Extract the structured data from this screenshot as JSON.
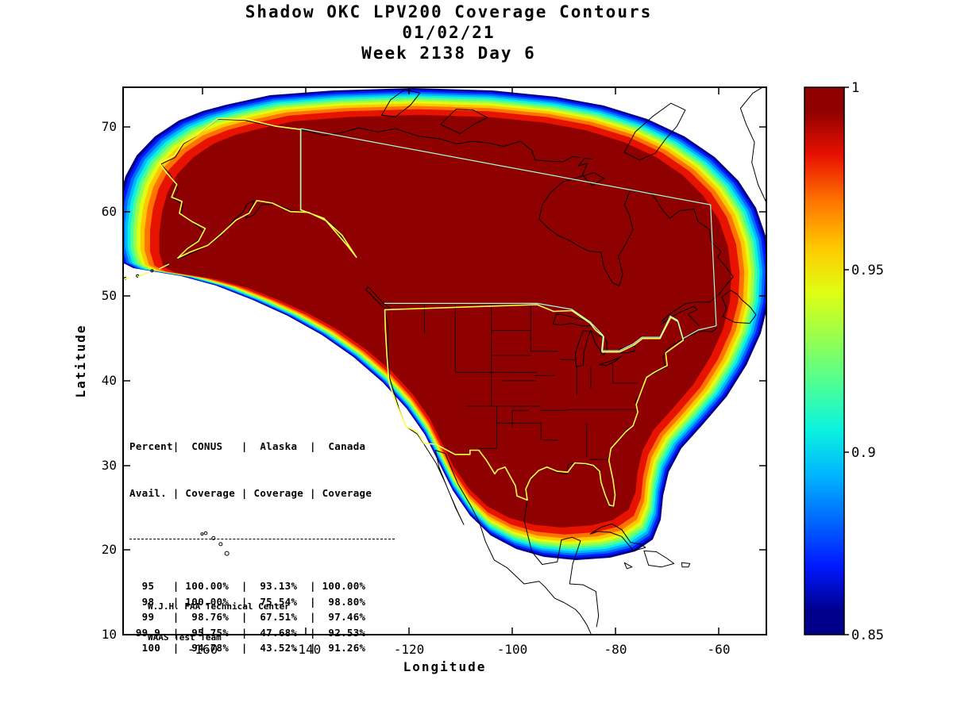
{
  "title": {
    "line1": "Shadow OKC LPV200 Coverage Contours",
    "line2": "01/02/21",
    "line3": "Week 2138 Day 6"
  },
  "axes": {
    "x_label": "Longitude",
    "y_label": "Latitude",
    "x_ticks": [
      "-160",
      "-140",
      "-120",
      "-100",
      "-80",
      "-60"
    ],
    "y_ticks": [
      "70",
      "60",
      "50",
      "40",
      "30",
      "20",
      "10"
    ]
  },
  "colorbar": {
    "tick_labels": [
      "1",
      "0.95",
      "0.9",
      "0.85"
    ]
  },
  "credit": {
    "line1": "W.J.H. FAA Technical Center",
    "line2": "WAAS Test Team"
  },
  "chart_data": {
    "type": "contour",
    "title": "Shadow OKC LPV200 Coverage Contours",
    "subtitle": "01/02/21  Week 2138 Day 6",
    "xlabel": "Longitude",
    "ylabel": "Latitude",
    "xlim": [
      -175.4,
      -50.8
    ],
    "ylim": [
      10,
      74.7
    ],
    "x_ticks": [
      -160,
      -140,
      -120,
      -100,
      -80,
      -60
    ],
    "y_ticks": [
      70,
      60,
      50,
      40,
      30,
      20,
      10
    ],
    "colormap": "jet",
    "colorbar_range": [
      0.85,
      1.0
    ],
    "colorbar_ticks": [
      1,
      0.95,
      0.9,
      0.85
    ],
    "legend_position": "right-colorbar",
    "grid": false,
    "region": "North America LPV200 coverage contour field, dark-red core (availability 1.0) covering CONUS/Canada/Alaska, rainbow rim down to 0.85 at edges",
    "contour_bands": [
      {
        "from": 0.85,
        "to": 0.8625,
        "color": "#00008B"
      },
      {
        "from": 0.8625,
        "to": 0.875,
        "color": "#0018FF"
      },
      {
        "from": 0.875,
        "to": 0.8875,
        "color": "#0068FF"
      },
      {
        "from": 0.8875,
        "to": 0.9,
        "color": "#00B5FF"
      },
      {
        "from": 0.9,
        "to": 0.9125,
        "color": "#0BF3DE"
      },
      {
        "from": 0.9125,
        "to": 0.925,
        "color": "#4DFF95"
      },
      {
        "from": 0.925,
        "to": 0.9375,
        "color": "#97FF4E"
      },
      {
        "from": 0.9375,
        "to": 0.95,
        "color": "#DFFF12"
      },
      {
        "from": 0.95,
        "to": 0.9625,
        "color": "#FFC800"
      },
      {
        "from": 0.9625,
        "to": 0.975,
        "color": "#FF7400"
      },
      {
        "from": 0.975,
        "to": 0.9875,
        "color": "#E81200"
      },
      {
        "from": 0.9875,
        "to": 1.0,
        "color": "#8F0000"
      }
    ],
    "overlay_colors": {
      "conus_alaska_boundary": "#FFFF4D",
      "canada_boundary": "#9FFFE0",
      "coastlines": "#000000"
    },
    "coverage_table": {
      "col_headers_line1": [
        "Percent",
        "CONUS",
        "Alaska",
        "Canada"
      ],
      "col_headers_line2": [
        "Avail.",
        "Coverage",
        "Coverage",
        "Coverage"
      ],
      "rows": [
        [
          "95",
          "100.00%",
          "93.13%",
          "100.00%"
        ],
        [
          "98",
          "100.00%",
          "75.54%",
          "98.80%"
        ],
        [
          "99",
          "98.76%",
          "67.51%",
          "97.46%"
        ],
        [
          "99.9",
          "95.75%",
          "47.68%",
          "92.53%"
        ],
        [
          "100",
          "94.78%",
          "43.52%",
          "91.26%"
        ]
      ]
    }
  }
}
